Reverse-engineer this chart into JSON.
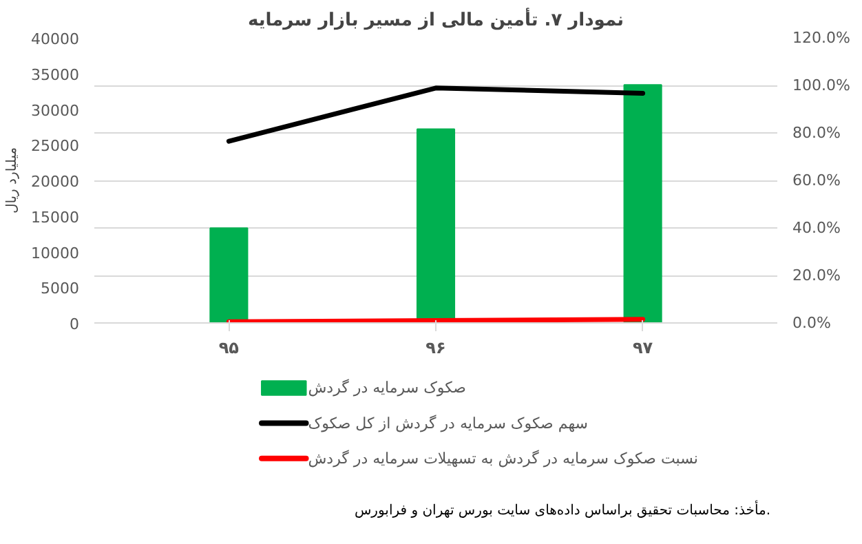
{
  "chart_data": {
    "type": "bar",
    "title": "نمودار ۷. تأمین مالی از مسیر بازار سرمایه",
    "ylabel": "میلیارد ریال",
    "categories": [
      "۹۵",
      "۹۶",
      "۹۷"
    ],
    "series": [
      {
        "name": "صکوک سرمایه در گردش",
        "color": "#00b050",
        "values": [
          13300,
          27200,
          33400
        ]
      },
      {
        "name": "سهم صکوک سرمایه در گردش از کل صکوک",
        "type": "line",
        "axis": "y2",
        "color": "#000000",
        "values": [
          76.5,
          98.9,
          96.7
        ]
      },
      {
        "name": "نسبت صکوک سرمایه در گردش به تسهیلات سرمایه در گردش",
        "type": "line",
        "axis": "y2",
        "color": "#ff0000",
        "values": [
          0.5,
          1.0,
          1.5
        ]
      }
    ],
    "ylim": [
      0,
      40000
    ],
    "yticks": [
      0,
      5000,
      10000,
      15000,
      20000,
      25000,
      30000,
      35000,
      40000
    ],
    "y2lim": [
      0,
      120
    ],
    "y2ticks": [
      {
        "value": 0,
        "label": "0.0%"
      },
      {
        "value": 20,
        "label": "20.0%"
      },
      {
        "value": 40,
        "label": "40.0%"
      },
      {
        "value": 60,
        "label": "60.0%"
      },
      {
        "value": 80,
        "label": "80.0%"
      },
      {
        "value": 100,
        "label": "100.0%"
      },
      {
        "value": 120,
        "label": "120.0%"
      }
    ],
    "grid": "y2",
    "legend": "bottom",
    "annotations": [
      "مأخذ: محاسبات تحقیق براساس داده‌های سایت بورس تهران و فرابورس."
    ]
  }
}
